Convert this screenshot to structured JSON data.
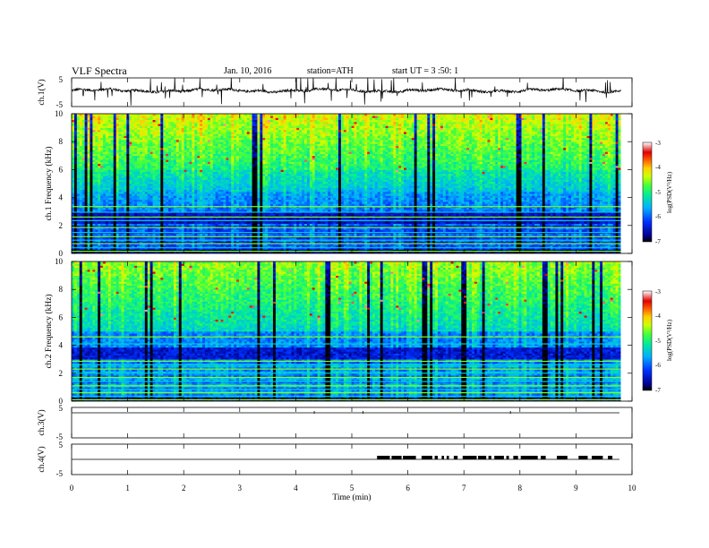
{
  "header": {
    "title": "VLF Spectra",
    "date": "Jan. 10, 2016",
    "station": "station=ATH",
    "start": "start UT = 3 :50: 1"
  },
  "chart_data": [
    {
      "type": "line",
      "name": "ch1-waveform",
      "ylabel": "ch.1(V)",
      "ylim": [
        -5,
        5
      ],
      "yticks": [
        "5",
        "-5"
      ]
    },
    {
      "type": "heatmap",
      "name": "ch1-spectrogram",
      "ylabel": "ch.1 Frequency (kHz)",
      "ylim": [
        0,
        10
      ],
      "yticks": [
        "0",
        "2",
        "4",
        "6",
        "8",
        "10"
      ],
      "colorbar": {
        "label": "log(PSD(V²/Hz)",
        "range": [
          -7,
          -3
        ],
        "ticks": [
          "-3",
          "-4",
          "-5",
          "-6",
          "-7"
        ]
      }
    },
    {
      "type": "heatmap",
      "name": "ch2-spectrogram",
      "ylabel": "ch.2 Frequency (kHz)",
      "ylim": [
        0,
        10
      ],
      "yticks": [
        "0",
        "2",
        "4",
        "6",
        "8",
        "10"
      ],
      "colorbar": {
        "label": "log(PSD(V²/Hz)",
        "range": [
          -7,
          -3
        ],
        "ticks": [
          "-3",
          "-4",
          "-5",
          "-6",
          "-7"
        ]
      }
    },
    {
      "type": "line",
      "name": "ch3-waveform",
      "ylabel": "ch.3(V)",
      "ylim": [
        -5,
        5
      ],
      "yticks": [
        "5",
        "-5"
      ]
    },
    {
      "type": "line",
      "name": "ch4-waveform",
      "ylabel": "ch.4(V)",
      "ylim": [
        -5,
        5
      ],
      "yticks": [
        "5",
        "-5"
      ],
      "pulse_interval_min": [
        5.45,
        9.65
      ]
    }
  ],
  "xaxis": {
    "label": "Time (min)",
    "range": [
      0,
      10
    ],
    "ticks": [
      "0",
      "1",
      "2",
      "3",
      "4",
      "5",
      "6",
      "7",
      "8",
      "9",
      "10"
    ]
  }
}
